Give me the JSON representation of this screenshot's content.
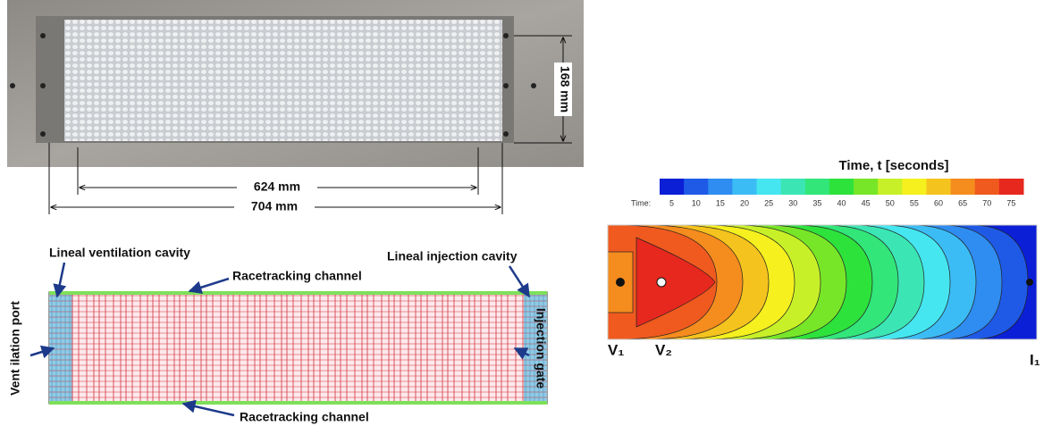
{
  "photo": {
    "height_label": "168 mm",
    "inner_length_label": "624 mm",
    "outer_length_label": "704 mm"
  },
  "mesh": {
    "ventilation_cavity": "Lineal ventilation cavity",
    "top_channel": "Racetracking channel",
    "injection_cavity": "Lineal injection cavity",
    "ventilation_port": "Vent ilation port",
    "injection_gate": "Injection gate",
    "bottom_channel": "Racetracking channel"
  },
  "contour": {
    "title": "Time, t [seconds]",
    "bar_label": "Time:",
    "ticks": [
      5,
      10,
      15,
      20,
      25,
      30,
      35,
      40,
      45,
      50,
      55,
      60,
      65,
      70,
      75
    ],
    "colors": [
      "#0a1fd6",
      "#1f5ae6",
      "#2f8cf0",
      "#3cbcf5",
      "#45e6f0",
      "#3ce6b4",
      "#32e67a",
      "#2ee23c",
      "#78e628",
      "#c8f028",
      "#f5f01e",
      "#f5c31e",
      "#f58c1e",
      "#f05a1e",
      "#e6281e"
    ],
    "vent_1": "V₁",
    "vent_2": "V₂",
    "inlet": "I₁"
  }
}
